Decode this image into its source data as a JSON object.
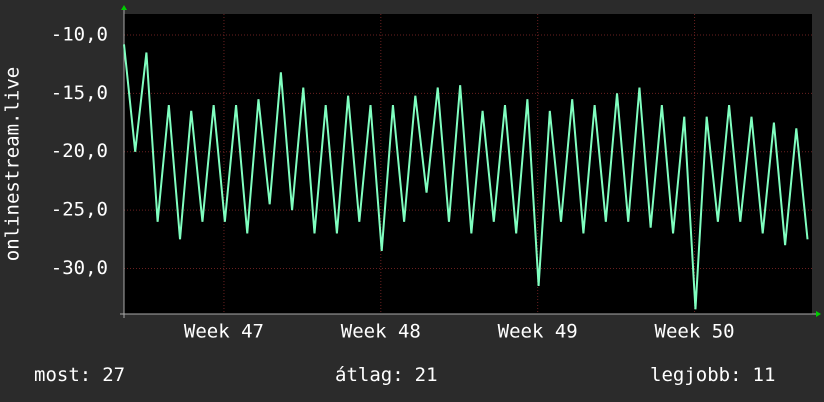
{
  "chart_data": {
    "type": "line",
    "y_label": "onlinestream.live",
    "x": [
      0,
      0.5,
      1,
      1.5,
      2,
      2.5,
      3,
      3.5,
      4,
      4.5,
      5,
      5.5,
      6,
      6.5,
      7,
      7.5,
      8,
      8.5,
      9,
      9.5,
      10,
      10.5,
      11,
      11.5,
      12,
      12.5,
      13,
      13.5,
      14,
      14.5,
      15,
      15.5,
      16,
      16.5,
      17,
      17.5,
      18,
      18.5,
      19,
      19.5,
      20,
      20.5,
      21,
      21.5,
      22,
      22.5,
      23,
      23.5,
      24,
      24.5,
      25,
      25.5,
      26,
      26.5,
      27,
      27.5,
      28,
      28.5,
      29,
      29.5,
      30,
      30.5
    ],
    "series": [
      {
        "color": "#80ffc0",
        "values": [
          -10.8,
          -20,
          -11.5,
          -26,
          -16,
          -27.5,
          -16.5,
          -26,
          -16,
          -26,
          -16,
          -27,
          -15.5,
          -24.5,
          -13.2,
          -25,
          -14.5,
          -27,
          -16,
          -27,
          -15.2,
          -26,
          -16,
          -28.5,
          -16,
          -26,
          -15.2,
          -23.5,
          -14.5,
          -26,
          -14.3,
          -27,
          -16.5,
          -26,
          -16,
          -27,
          -15.5,
          -31.5,
          -16.5,
          -26,
          -15.5,
          -27,
          -16,
          -26,
          -15,
          -26,
          -14.5,
          -26.5,
          -16,
          -27,
          -17,
          -33.5,
          -17,
          -26,
          -16,
          -26,
          -17,
          -27,
          -17.5,
          -28,
          -18,
          -27.5
        ]
      }
    ],
    "xlim": [
      0,
      30.7
    ],
    "xticks": [
      {
        "value": 4.46,
        "label": "Week 47"
      },
      {
        "value": 11.46,
        "label": "Week 48"
      },
      {
        "value": 18.46,
        "label": "Week 49"
      },
      {
        "value": 25.46,
        "label": "Week 50"
      }
    ],
    "ylim": [
      -33.9,
      -8.2
    ],
    "yticks": [
      {
        "value": -10,
        "label": "-10,0"
      },
      {
        "value": -15,
        "label": "-15,0"
      },
      {
        "value": -20,
        "label": "-20,0"
      },
      {
        "value": -25,
        "label": "-25,0"
      },
      {
        "value": -30,
        "label": "-30,0"
      }
    ],
    "grid": true,
    "footer": [
      {
        "label": "most:",
        "value": 27
      },
      {
        "label": "átlag:",
        "value": 21
      },
      {
        "label": "legjobb:",
        "value": 11
      }
    ]
  }
}
